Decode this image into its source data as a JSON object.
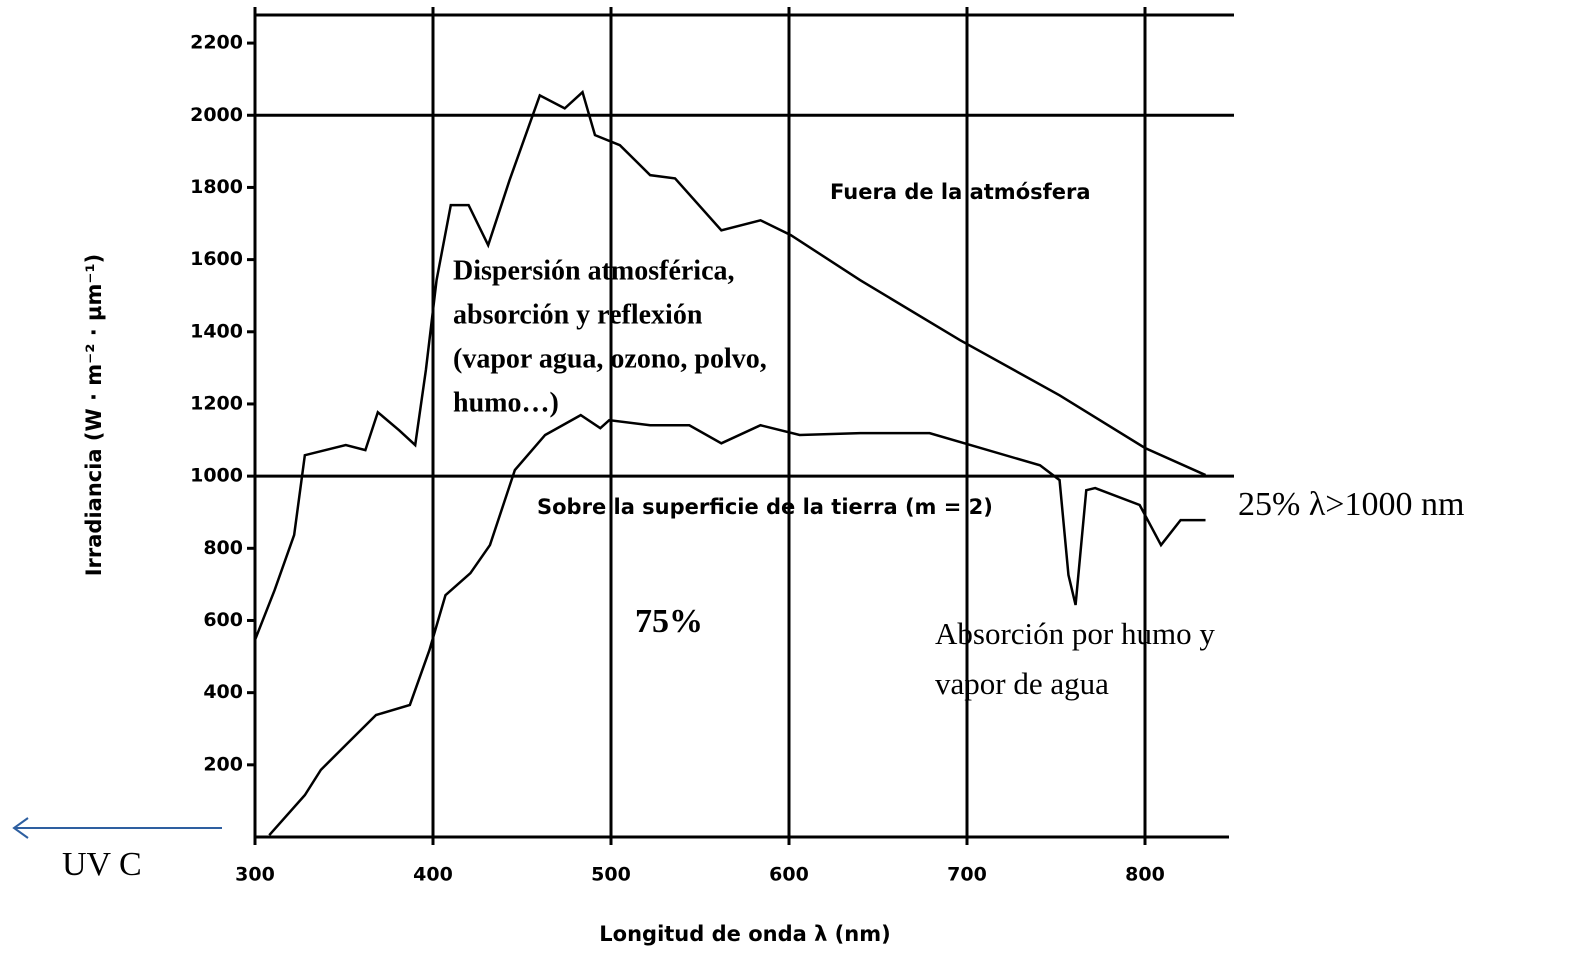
{
  "chart_data": {
    "type": "line",
    "x_label": "Longitud de onda λ (nm)",
    "y_label": "Irradiancia (W · m⁻² · µm⁻¹)",
    "xlim": [
      300,
      850
    ],
    "ylim": [
      0,
      2300
    ],
    "xticks": [
      300,
      400,
      500,
      600,
      700,
      800
    ],
    "yticks": [
      200,
      400,
      600,
      800,
      1000,
      1200,
      1400,
      1600,
      1800,
      2000,
      2200
    ],
    "ygrid": [
      1000,
      2000
    ],
    "xgrid": true,
    "series": [
      {
        "name": "Fuera de la atmósfera",
        "color": "#000000",
        "x": [
          300,
          311,
          322,
          328,
          351,
          362,
          369,
          381,
          390,
          396,
          402,
          410,
          420,
          431,
          443,
          460,
          474,
          484,
          491,
          505,
          522,
          536,
          562,
          584,
          601,
          640,
          696,
          752,
          800,
          834
        ],
        "values": [
          546,
          684,
          837,
          1058,
          1086,
          1072,
          1177,
          1127,
          1086,
          1294,
          1543,
          1751,
          1751,
          1640,
          1820,
          2055,
          2019,
          2064,
          1945,
          1917,
          1834,
          1825,
          1681,
          1709,
          1668,
          1543,
          1377,
          1224,
          1078,
          1003
        ]
      },
      {
        "name": "Sobre la superficie de la tierra (m = 2)",
        "color": "#000000",
        "x": [
          308,
          328,
          337,
          351,
          368,
          387,
          398,
          407,
          421,
          432,
          446,
          463,
          483,
          494,
          499,
          522,
          544,
          562,
          584,
          606,
          640,
          679,
          702,
          741,
          752,
          757,
          761,
          767,
          772,
          797,
          809,
          820,
          834
        ],
        "values": [
          5,
          116,
          186,
          255,
          338,
          366,
          518,
          670,
          731,
          809,
          1017,
          1114,
          1169,
          1133,
          1155,
          1141,
          1141,
          1091,
          1141,
          1114,
          1119,
          1119,
          1086,
          1030,
          989,
          726,
          643,
          961,
          967,
          920,
          809,
          878,
          878
        ]
      }
    ],
    "annotations": [
      {
        "lines": [
          "Dispersión atmosférica,",
          "absorción y reflexión",
          "(vapor agua, ozono, polvo,",
          "humo…)"
        ]
      },
      {
        "text": "75%"
      },
      {
        "lines": [
          "Absorción por humo y",
          "vapor de agua"
        ]
      },
      {
        "text": "25% λ>1000 nm"
      },
      {
        "text": "UV C"
      }
    ]
  }
}
